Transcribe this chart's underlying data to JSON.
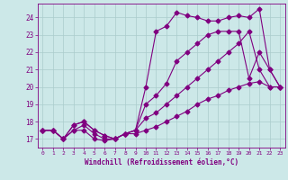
{
  "xlabel": "Windchill (Refroidissement éolien,°C)",
  "xlim": [
    -0.5,
    23.5
  ],
  "ylim": [
    16.5,
    24.8
  ],
  "yticks": [
    17,
    18,
    19,
    20,
    21,
    22,
    23,
    24
  ],
  "xticks": [
    0,
    1,
    2,
    3,
    4,
    5,
    6,
    7,
    8,
    9,
    10,
    11,
    12,
    13,
    14,
    15,
    16,
    17,
    18,
    19,
    20,
    21,
    22,
    23
  ],
  "bg_color": "#cce8e8",
  "line_color": "#800080",
  "grid_color": "#aacccc",
  "line1_x": [
    0,
    1,
    2,
    3,
    4,
    5,
    6,
    7,
    8,
    9,
    10,
    11,
    12,
    13,
    14,
    15,
    16,
    17,
    18,
    19,
    20,
    21,
    22,
    23
  ],
  "line1_y": [
    17.5,
    17.5,
    17.0,
    17.5,
    17.5,
    17.0,
    16.9,
    17.0,
    17.3,
    17.5,
    20.0,
    23.2,
    23.5,
    24.3,
    24.1,
    24.0,
    23.8,
    23.8,
    24.0,
    24.1,
    24.0,
    24.5,
    21.0,
    20.0
  ],
  "line2_x": [
    0,
    1,
    2,
    3,
    4,
    5,
    6,
    7,
    8,
    9,
    10,
    11,
    12,
    13,
    14,
    15,
    16,
    17,
    18,
    19,
    20,
    21,
    22,
    23
  ],
  "line2_y": [
    17.5,
    17.5,
    17.0,
    17.8,
    18.0,
    17.5,
    17.2,
    17.0,
    17.3,
    17.5,
    19.0,
    19.5,
    20.2,
    21.5,
    22.0,
    22.5,
    23.0,
    23.2,
    23.2,
    23.2,
    20.5,
    22.0,
    21.0,
    20.0
  ],
  "line3_x": [
    0,
    1,
    2,
    3,
    4,
    5,
    6,
    7,
    8,
    9,
    10,
    11,
    12,
    13,
    14,
    15,
    16,
    17,
    18,
    19,
    20,
    21,
    22,
    23
  ],
  "line3_y": [
    17.5,
    17.5,
    17.0,
    17.8,
    18.0,
    17.5,
    17.2,
    17.0,
    17.3,
    17.5,
    18.2,
    18.5,
    19.0,
    19.5,
    20.0,
    20.5,
    21.0,
    21.5,
    22.0,
    22.5,
    23.2,
    21.0,
    20.0,
    20.0
  ],
  "line4_x": [
    0,
    1,
    2,
    3,
    4,
    5,
    6,
    7,
    8,
    9,
    10,
    11,
    12,
    13,
    14,
    15,
    16,
    17,
    18,
    19,
    20,
    21,
    22,
    23
  ],
  "line4_y": [
    17.5,
    17.5,
    17.0,
    17.5,
    17.8,
    17.3,
    17.0,
    17.0,
    17.3,
    17.3,
    17.5,
    17.7,
    18.0,
    18.3,
    18.6,
    19.0,
    19.3,
    19.5,
    19.8,
    20.0,
    20.2,
    20.3,
    20.0,
    20.0
  ]
}
